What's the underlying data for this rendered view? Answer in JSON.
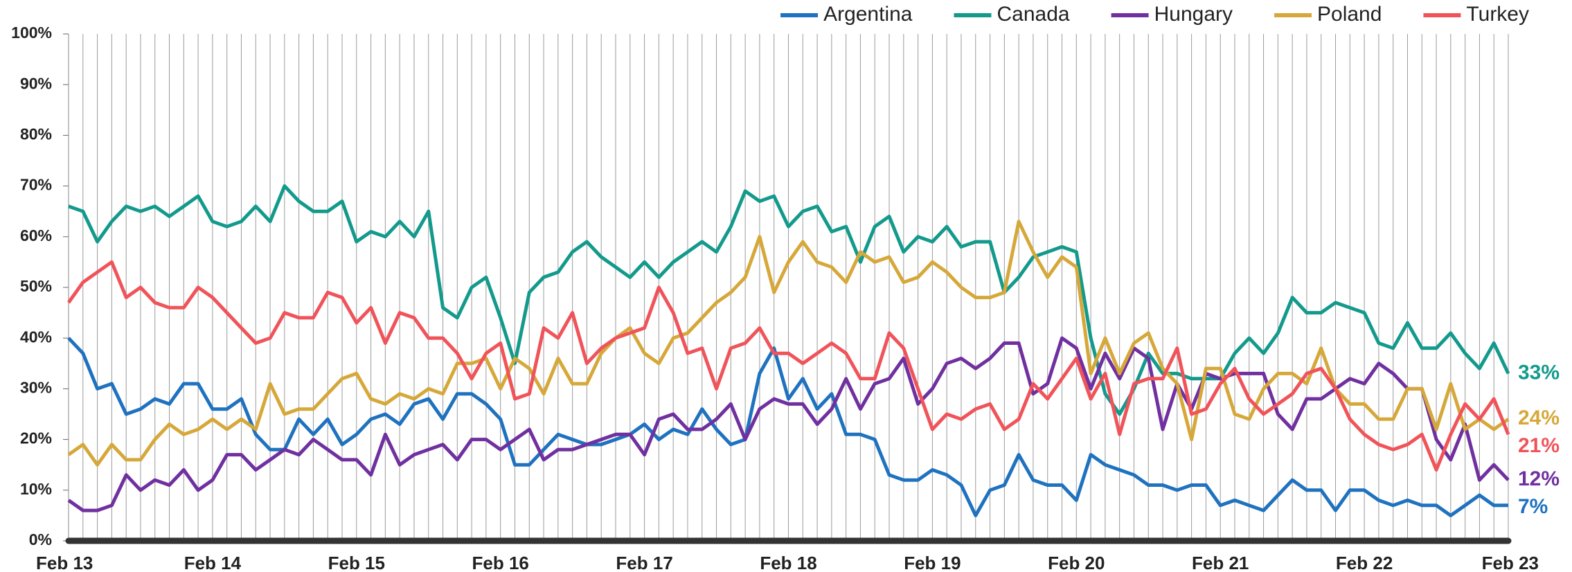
{
  "chart_data": {
    "type": "line",
    "categories": [
      "Feb 13",
      null,
      null,
      null,
      null,
      null,
      null,
      null,
      null,
      null,
      "Feb 14",
      null,
      null,
      null,
      null,
      null,
      null,
      null,
      null,
      null,
      "Feb 15",
      null,
      null,
      null,
      null,
      null,
      null,
      null,
      null,
      null,
      "Feb 16",
      null,
      null,
      null,
      null,
      null,
      null,
      null,
      null,
      null,
      "Feb 17",
      null,
      null,
      null,
      null,
      null,
      null,
      null,
      null,
      null,
      "Feb 18",
      null,
      null,
      null,
      null,
      null,
      null,
      null,
      null,
      null,
      "Feb 19",
      null,
      null,
      null,
      null,
      null,
      null,
      null,
      null,
      null,
      "Feb 20",
      null,
      null,
      null,
      null,
      null,
      null,
      null,
      null,
      null,
      "Feb 21",
      null,
      null,
      null,
      null,
      null,
      null,
      null,
      null,
      null,
      "Feb 22",
      null,
      null,
      null,
      null,
      null,
      null,
      null,
      null,
      null,
      "Feb 23"
    ],
    "ylim": [
      0,
      100
    ],
    "yticks": [
      {
        "value": 0,
        "label": "0%"
      },
      {
        "value": 10,
        "label": "10%"
      },
      {
        "value": 20,
        "label": "20%"
      },
      {
        "value": 30,
        "label": "30%"
      },
      {
        "value": 40,
        "label": "40%"
      },
      {
        "value": 50,
        "label": "50%"
      },
      {
        "value": 60,
        "label": "60%"
      },
      {
        "value": 70,
        "label": "70%"
      },
      {
        "value": 80,
        "label": "80%"
      },
      {
        "value": 90,
        "label": "90%"
      },
      {
        "value": 100,
        "label": "100%"
      }
    ],
    "grid": true,
    "legend": "top-right",
    "series": [
      {
        "name": "Argentina",
        "color": "#1f72bf",
        "end_label": "7%",
        "values": [
          40,
          37,
          30,
          31,
          25,
          26,
          28,
          27,
          31,
          31,
          26,
          26,
          28,
          21,
          18,
          18,
          24,
          21,
          24,
          19,
          21,
          24,
          25,
          23,
          27,
          28,
          24,
          29,
          29,
          27,
          24,
          15,
          15,
          18,
          21,
          20,
          19,
          19,
          20,
          21,
          23,
          20,
          22,
          21,
          26,
          22,
          19,
          20,
          33,
          38,
          28,
          32,
          26,
          29,
          21,
          21,
          20,
          13,
          12,
          12,
          14,
          13,
          11,
          5,
          10,
          11,
          17,
          12,
          11,
          11,
          8,
          17,
          15,
          14,
          13,
          11,
          11,
          10,
          11,
          11,
          7,
          8,
          7,
          6,
          9,
          12,
          10,
          10,
          6,
          10,
          10,
          8,
          7,
          8,
          7,
          7,
          5,
          7,
          9,
          7,
          7
        ]
      },
      {
        "name": "Canada",
        "color": "#139a8c",
        "end_label": "33%",
        "values": [
          66,
          65,
          59,
          63,
          66,
          65,
          66,
          64,
          66,
          68,
          63,
          62,
          63,
          66,
          63,
          70,
          67,
          65,
          65,
          67,
          59,
          61,
          60,
          63,
          60,
          65,
          46,
          44,
          50,
          52,
          44,
          35,
          49,
          52,
          53,
          57,
          59,
          56,
          54,
          52,
          55,
          52,
          55,
          57,
          59,
          57,
          62,
          69,
          67,
          68,
          62,
          65,
          66,
          61,
          62,
          55,
          62,
          64,
          57,
          60,
          59,
          62,
          58,
          59,
          59,
          49,
          52,
          56,
          57,
          58,
          57,
          40,
          29,
          25,
          30,
          37,
          33,
          33,
          32,
          32,
          32,
          37,
          40,
          37,
          41,
          48,
          45,
          45,
          47,
          46,
          45,
          39,
          38,
          43,
          38,
          38,
          41,
          37,
          34,
          39,
          33
        ]
      },
      {
        "name": "Hungary",
        "color": "#7030a0",
        "end_label": "12%",
        "values": [
          8,
          6,
          6,
          7,
          13,
          10,
          12,
          11,
          14,
          10,
          12,
          17,
          17,
          14,
          16,
          18,
          17,
          20,
          18,
          16,
          16,
          13,
          21,
          15,
          17,
          18,
          19,
          16,
          20,
          20,
          18,
          20,
          22,
          16,
          18,
          18,
          19,
          20,
          21,
          21,
          17,
          24,
          25,
          22,
          22,
          24,
          27,
          20,
          26,
          28,
          27,
          27,
          23,
          26,
          32,
          26,
          31,
          32,
          36,
          27,
          30,
          35,
          36,
          34,
          36,
          39,
          39,
          29,
          31,
          40,
          38,
          30,
          37,
          32,
          38,
          36,
          22,
          31,
          26,
          33,
          32,
          33,
          33,
          33,
          25,
          22,
          28,
          28,
          30,
          32,
          31,
          35,
          33,
          30,
          30,
          20,
          16,
          23,
          12,
          15,
          12
        ]
      },
      {
        "name": "Poland",
        "color": "#d6a83a",
        "end_label": "24%",
        "values": [
          17,
          19,
          15,
          19,
          16,
          16,
          20,
          23,
          21,
          22,
          24,
          22,
          24,
          22,
          31,
          25,
          26,
          26,
          29,
          32,
          33,
          28,
          27,
          29,
          28,
          30,
          29,
          35,
          35,
          36,
          30,
          36,
          34,
          29,
          36,
          31,
          31,
          37,
          40,
          42,
          37,
          35,
          40,
          41,
          44,
          47,
          49,
          52,
          60,
          49,
          55,
          59,
          55,
          54,
          51,
          57,
          55,
          56,
          51,
          52,
          55,
          53,
          50,
          48,
          48,
          49,
          63,
          57,
          52,
          56,
          54,
          33,
          40,
          33,
          39,
          41,
          34,
          31,
          20,
          34,
          34,
          25,
          24,
          30,
          33,
          33,
          31,
          38,
          30,
          27,
          27,
          24,
          24,
          30,
          30,
          22,
          31,
          22,
          24,
          22,
          24
        ]
      },
      {
        "name": "Turkey",
        "color": "#f0545a",
        "end_label": "21%",
        "values": [
          47,
          51,
          53,
          55,
          48,
          50,
          47,
          46,
          46,
          50,
          48,
          45,
          42,
          39,
          40,
          45,
          44,
          44,
          49,
          48,
          43,
          46,
          39,
          45,
          44,
          40,
          40,
          37,
          32,
          37,
          39,
          28,
          29,
          42,
          40,
          45,
          35,
          38,
          40,
          41,
          42,
          50,
          45,
          37,
          38,
          30,
          38,
          39,
          42,
          37,
          37,
          35,
          37,
          39,
          37,
          32,
          32,
          41,
          38,
          30,
          22,
          25,
          24,
          26,
          27,
          22,
          24,
          31,
          28,
          32,
          36,
          28,
          33,
          21,
          31,
          32,
          32,
          38,
          25,
          26,
          31,
          34,
          28,
          25,
          27,
          29,
          33,
          34,
          30,
          24,
          21,
          19,
          18,
          19,
          21,
          14,
          21,
          27,
          24,
          28,
          21
        ]
      }
    ]
  }
}
